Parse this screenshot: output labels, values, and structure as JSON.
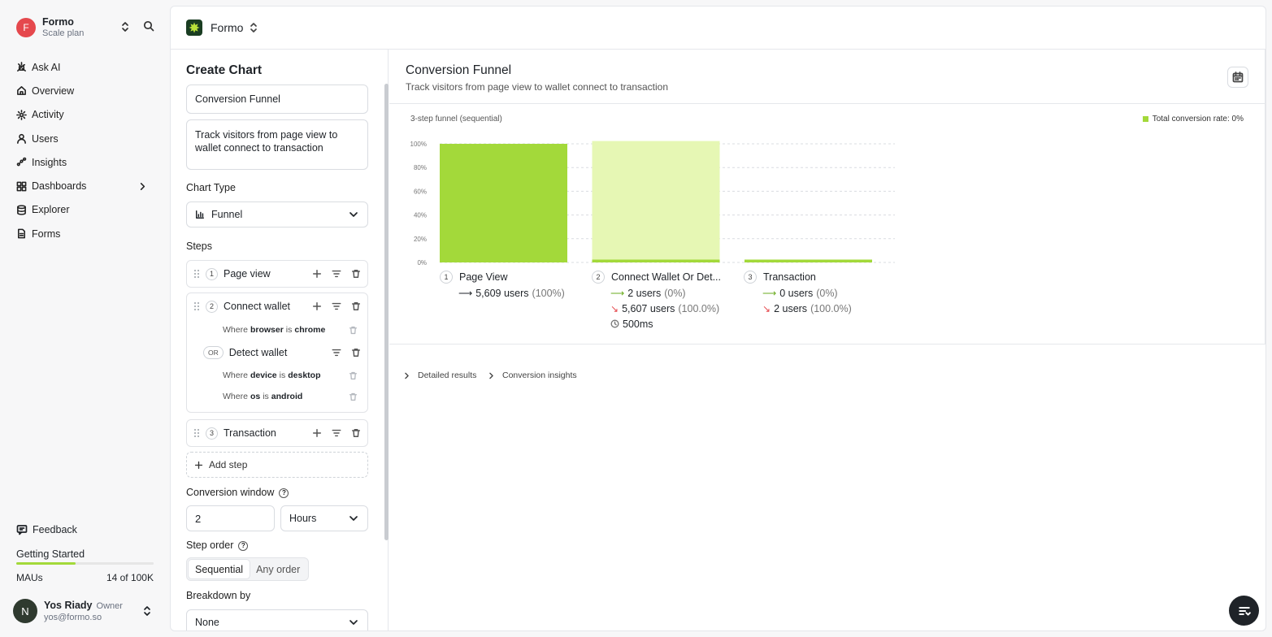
{
  "workspace": {
    "initial": "F",
    "name": "Formo",
    "plan": "Scale plan"
  },
  "nav": [
    {
      "label": "Ask AI",
      "icon": "sparkle-icon"
    },
    {
      "label": "Overview",
      "icon": "home-icon"
    },
    {
      "label": "Activity",
      "icon": "activity-icon"
    },
    {
      "label": "Users",
      "icon": "users-icon"
    },
    {
      "label": "Insights",
      "icon": "insights-icon"
    },
    {
      "label": "Dashboards",
      "icon": "dashboard-icon"
    },
    {
      "label": "Explorer",
      "icon": "database-icon"
    },
    {
      "label": "Forms",
      "icon": "form-icon"
    }
  ],
  "footer": {
    "feedback": "Feedback",
    "getting_started": "Getting Started",
    "getting_started_progress": 0.43,
    "mau_label": "MAUs",
    "mau_value": "14 of 100K"
  },
  "user": {
    "initial": "N",
    "name": "Yos Riady",
    "role": "Owner",
    "email": "yos@formo.so"
  },
  "topbar": {
    "project": "Formo"
  },
  "editor": {
    "title": "Create Chart",
    "chart_name": "Conversion Funnel",
    "description": "Track visitors from page view to wallet connect to transaction",
    "chart_type_label": "Chart Type",
    "chart_type_value": "Funnel",
    "steps_label": "Steps",
    "steps": [
      {
        "num": "1",
        "name": "Page view"
      },
      {
        "num": "2",
        "name": "Connect wallet",
        "where": "Where",
        "is": "is",
        "cond1": {
          "prop": "browser",
          "val": "chrome"
        },
        "or_label": "OR",
        "or_name": "Detect wallet",
        "cond2": {
          "prop": "device",
          "val": "desktop"
        },
        "cond3": {
          "prop": "os",
          "val": "android"
        }
      },
      {
        "num": "3",
        "name": "Transaction"
      }
    ],
    "add_step": "Add step",
    "window_label": "Conversion window",
    "window_value": "2",
    "window_unit": "Hours",
    "order_label": "Step order",
    "order_options": [
      "Sequential",
      "Any order"
    ],
    "breakdown_label": "Breakdown by",
    "breakdown_value": "None"
  },
  "panel": {
    "title": "Conversion Funnel",
    "subtitle": "Track visitors from page view to wallet connect to transaction",
    "funnel_label": "3-step funnel (sequential)",
    "legend": "Total conversion rate: 0%",
    "steps": [
      {
        "num": "1",
        "name": "Page View",
        "converted": "5,609 users",
        "converted_pct": "(100%)"
      },
      {
        "num": "2",
        "name": "Connect Wallet Or Det...",
        "converted": "2 users",
        "converted_pct": "(0%)",
        "dropped": "5,607 users",
        "dropped_pct": "(100.0%)",
        "time": "500ms"
      },
      {
        "num": "3",
        "name": "Transaction",
        "converted": "0 users",
        "converted_pct": "(0%)",
        "dropped": "2 users",
        "dropped_pct": "(100.0%)"
      }
    ],
    "detailed_results": "Detailed results",
    "conversion_insights": "Conversion insights"
  },
  "chart_data": {
    "type": "bar",
    "categories": [
      "Page View",
      "Connect Wallet Or Det...",
      "Transaction"
    ],
    "series": [
      {
        "name": "Converted",
        "values": [
          100,
          0.04,
          0
        ],
        "color": "#a3d93a"
      },
      {
        "name": "Dropped",
        "values": [
          0,
          99.96,
          0
        ],
        "color": "#e6f7b4"
      }
    ],
    "y_ticks": [
      "100%",
      "80%",
      "60%",
      "40%",
      "20%",
      "0%"
    ],
    "ylim": [
      0,
      100
    ],
    "grid": true,
    "legend": "top-right"
  }
}
